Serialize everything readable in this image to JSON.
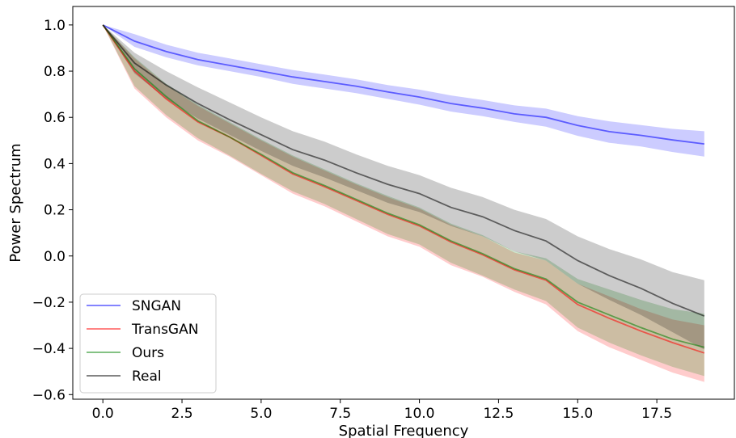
{
  "chart_data": {
    "type": "line",
    "xlabel": "Spatial Frequency",
    "ylabel": "Power Spectrum",
    "xlim": [
      -0.95,
      19.95
    ],
    "ylim": [
      -0.62,
      1.08
    ],
    "xticks": [
      0.0,
      2.5,
      5.0,
      7.5,
      10.0,
      12.5,
      15.0,
      17.5
    ],
    "yticks": [
      -0.6,
      -0.4,
      -0.2,
      0.0,
      0.2,
      0.4,
      0.6,
      0.8,
      1.0
    ],
    "x": [
      0,
      1,
      2,
      3,
      4,
      5,
      6,
      7,
      8,
      9,
      10,
      11,
      12,
      13,
      14,
      15,
      16,
      17,
      18,
      19
    ],
    "grid": false,
    "legend_position": "lower-left",
    "series": [
      {
        "name": "SNGAN",
        "color": "#0000ff",
        "mean": [
          1.0,
          0.93,
          0.885,
          0.85,
          0.825,
          0.8,
          0.775,
          0.755,
          0.735,
          0.71,
          0.688,
          0.66,
          0.64,
          0.615,
          0.6,
          0.565,
          0.538,
          0.522,
          0.502,
          0.485
        ],
        "upper": [
          1.0,
          0.96,
          0.915,
          0.88,
          0.855,
          0.83,
          0.805,
          0.785,
          0.765,
          0.74,
          0.72,
          0.695,
          0.675,
          0.652,
          0.638,
          0.605,
          0.583,
          0.567,
          0.55,
          0.54
        ],
        "lower": [
          1.0,
          0.905,
          0.86,
          0.825,
          0.8,
          0.775,
          0.745,
          0.725,
          0.705,
          0.68,
          0.655,
          0.625,
          0.605,
          0.58,
          0.56,
          0.52,
          0.49,
          0.474,
          0.45,
          0.43
        ]
      },
      {
        "name": "TransGAN",
        "color": "#ff0000",
        "mean": [
          1.0,
          0.8,
          0.68,
          0.58,
          0.515,
          0.435,
          0.355,
          0.3,
          0.24,
          0.18,
          0.13,
          0.06,
          0.005,
          -0.06,
          -0.105,
          -0.21,
          -0.27,
          -0.325,
          -0.375,
          -0.42
        ],
        "upper": [
          1.0,
          0.855,
          0.74,
          0.65,
          0.575,
          0.5,
          0.43,
          0.37,
          0.31,
          0.255,
          0.205,
          0.135,
          0.085,
          0.015,
          -0.02,
          -0.12,
          -0.175,
          -0.23,
          -0.275,
          -0.3
        ],
        "lower": [
          1.0,
          0.725,
          0.6,
          0.5,
          0.43,
          0.35,
          0.27,
          0.215,
          0.15,
          0.085,
          0.04,
          -0.04,
          -0.09,
          -0.155,
          -0.21,
          -0.325,
          -0.395,
          -0.45,
          -0.505,
          -0.545
        ]
      },
      {
        "name": "Ours",
        "color": "#008000",
        "mean": [
          1.0,
          0.81,
          0.69,
          0.585,
          0.515,
          0.44,
          0.36,
          0.305,
          0.245,
          0.185,
          0.135,
          0.065,
          0.01,
          -0.055,
          -0.1,
          -0.2,
          -0.255,
          -0.31,
          -0.36,
          -0.395
        ],
        "upper": [
          1.0,
          0.86,
          0.745,
          0.655,
          0.58,
          0.505,
          0.435,
          0.375,
          0.315,
          0.26,
          0.21,
          0.14,
          0.09,
          0.02,
          -0.01,
          -0.1,
          -0.145,
          -0.19,
          -0.23,
          -0.25
        ],
        "lower": [
          1.0,
          0.735,
          0.61,
          0.51,
          0.435,
          0.355,
          0.28,
          0.225,
          0.16,
          0.095,
          0.05,
          -0.03,
          -0.085,
          -0.145,
          -0.195,
          -0.31,
          -0.375,
          -0.43,
          -0.48,
          -0.52
        ]
      },
      {
        "name": "Real",
        "color": "#000000",
        "mean": [
          1.0,
          0.835,
          0.74,
          0.66,
          0.59,
          0.525,
          0.46,
          0.415,
          0.36,
          0.31,
          0.27,
          0.21,
          0.17,
          0.11,
          0.065,
          -0.02,
          -0.085,
          -0.14,
          -0.205,
          -0.26
        ],
        "upper": [
          1.0,
          0.88,
          0.8,
          0.73,
          0.665,
          0.6,
          0.54,
          0.495,
          0.44,
          0.39,
          0.35,
          0.295,
          0.255,
          0.2,
          0.16,
          0.085,
          0.03,
          -0.015,
          -0.07,
          -0.105
        ],
        "lower": [
          1.0,
          0.79,
          0.68,
          0.595,
          0.525,
          0.455,
          0.39,
          0.34,
          0.285,
          0.23,
          0.19,
          0.13,
          0.085,
          0.02,
          -0.02,
          -0.12,
          -0.19,
          -0.255,
          -0.33,
          -0.405
        ]
      }
    ]
  }
}
